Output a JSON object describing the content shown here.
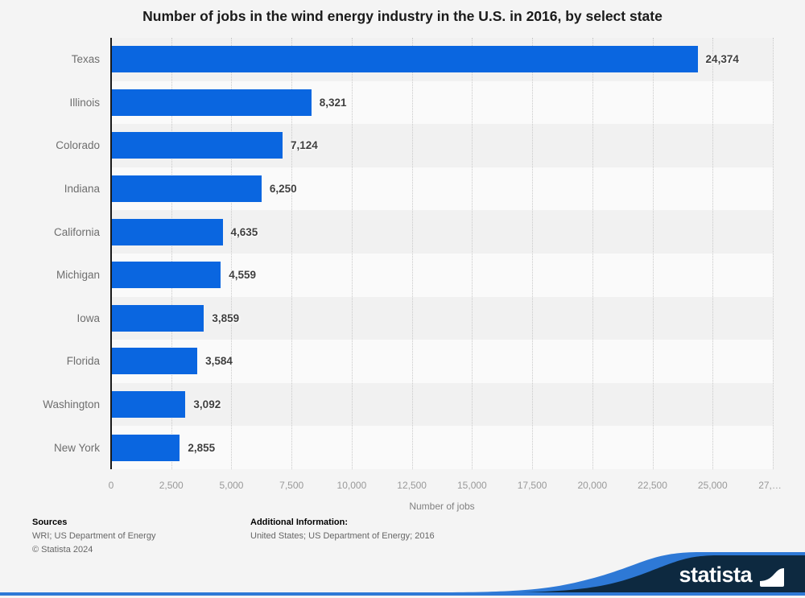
{
  "chart_data": {
    "type": "bar",
    "orientation": "horizontal",
    "title": "Number of jobs in the wind energy industry in the U.S. in 2016, by select state",
    "categories": [
      "Texas",
      "Illinois",
      "Colorado",
      "Indiana",
      "California",
      "Michigan",
      "Iowa",
      "Florida",
      "Washington",
      "New York"
    ],
    "values": [
      24374,
      8321,
      7124,
      6250,
      4635,
      4559,
      3859,
      3584,
      3092,
      2855
    ],
    "value_labels": [
      "24,374",
      "8,321",
      "7,124",
      "6,250",
      "4,635",
      "4,559",
      "3,859",
      "3,584",
      "3,092",
      "2,855"
    ],
    "xlabel": "Number of jobs",
    "ylabel": "",
    "xlim": [
      0,
      27500
    ],
    "xticks": [
      0,
      2500,
      5000,
      7500,
      10000,
      12500,
      15000,
      17500,
      20000,
      22500,
      25000,
      27500
    ],
    "xtick_labels": [
      "0",
      "2,500",
      "5,000",
      "7,500",
      "10,000",
      "12,500",
      "15,000",
      "17,500",
      "20,000",
      "22,500",
      "25,000",
      "27,…"
    ],
    "grid": "vertical-dotted",
    "legend": "none",
    "bar_color": "#0a66e0",
    "stripe_color_odd": "#f1f1f1",
    "stripe_color_even": "#fafafa"
  },
  "footer": {
    "sources_heading": "Sources",
    "sources_line": "WRI; US Department of Energy",
    "copyright": "© Statista 2024",
    "additional_heading": "Additional Information:",
    "additional_line": "United States; US Department of Energy; 2016"
  },
  "brand": {
    "wordmark": "statista",
    "navy": "#0d2940",
    "blue": "#2e79d6"
  }
}
